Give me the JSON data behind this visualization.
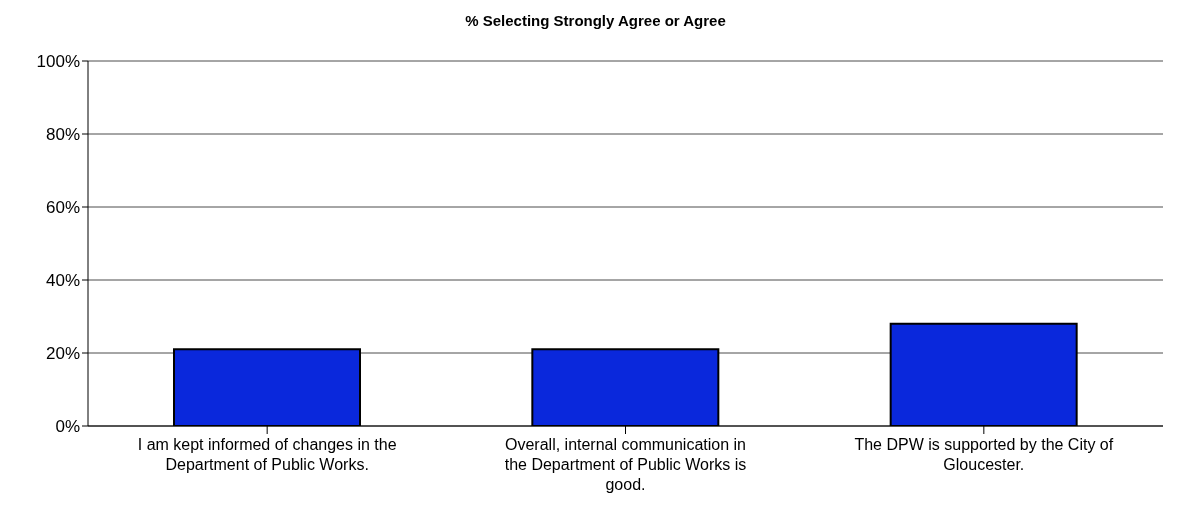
{
  "chart_data": {
    "type": "bar",
    "title": "% Selecting Strongly Agree or Agree",
    "categories": [
      "I am kept informed of changes in the Department of Public Works.",
      "Overall, internal communication in the Department of Public Works is good.",
      "The DPW is supported by the City of Gloucester."
    ],
    "values": [
      21,
      21,
      28
    ],
    "color": "#0a28dc",
    "ylim": [
      0,
      100
    ],
    "yticks": [
      {
        "value": 0,
        "label": "0%"
      },
      {
        "value": 20,
        "label": "20%"
      },
      {
        "value": 40,
        "label": "40%"
      },
      {
        "value": 60,
        "label": "60%"
      },
      {
        "value": 80,
        "label": "80%"
      },
      {
        "value": 100,
        "label": "100%"
      }
    ],
    "grid": "y"
  }
}
